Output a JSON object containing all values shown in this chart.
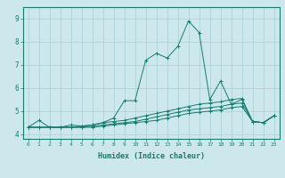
{
  "xlabel": "Humidex (Indice chaleur)",
  "ylabel": "",
  "bg_color": "#cce8ec",
  "grid_color": "#aacdd4",
  "line_color": "#1a7a6e",
  "xlim": [
    -0.5,
    23.5
  ],
  "ylim": [
    3.8,
    9.5
  ],
  "yticks": [
    4,
    5,
    6,
    7,
    8,
    9
  ],
  "xticks": [
    0,
    1,
    2,
    3,
    4,
    5,
    6,
    7,
    8,
    9,
    10,
    11,
    12,
    13,
    14,
    15,
    16,
    17,
    18,
    19,
    20,
    21,
    22,
    23
  ],
  "series": [
    {
      "x": [
        0,
        1,
        2,
        3,
        4,
        5,
        6,
        7,
        8,
        9,
        10,
        11,
        12,
        13,
        14,
        15,
        16,
        17,
        18,
        19,
        20,
        21,
        22,
        23
      ],
      "y": [
        4.3,
        4.6,
        4.3,
        4.3,
        4.4,
        4.35,
        4.4,
        4.5,
        4.7,
        5.45,
        5.45,
        7.2,
        7.5,
        7.3,
        7.8,
        8.9,
        8.4,
        5.5,
        6.3,
        5.3,
        5.5,
        4.55,
        4.5,
        4.8
      ]
    },
    {
      "x": [
        0,
        1,
        2,
        3,
        4,
        5,
        6,
        7,
        8,
        9,
        10,
        11,
        12,
        13,
        14,
        15,
        16,
        17,
        18,
        19,
        20,
        21,
        22,
        23
      ],
      "y": [
        4.3,
        4.3,
        4.3,
        4.3,
        4.3,
        4.35,
        4.4,
        4.5,
        4.55,
        4.6,
        4.7,
        4.8,
        4.9,
        5.0,
        5.1,
        5.2,
        5.3,
        5.35,
        5.4,
        5.5,
        5.55,
        4.55,
        4.5,
        4.8
      ]
    },
    {
      "x": [
        0,
        1,
        2,
        3,
        4,
        5,
        6,
        7,
        8,
        9,
        10,
        11,
        12,
        13,
        14,
        15,
        16,
        17,
        18,
        19,
        20,
        21,
        22,
        23
      ],
      "y": [
        4.3,
        4.3,
        4.3,
        4.3,
        4.3,
        4.3,
        4.35,
        4.4,
        4.45,
        4.5,
        4.55,
        4.65,
        4.75,
        4.85,
        4.95,
        5.05,
        5.1,
        5.15,
        5.2,
        5.3,
        5.35,
        4.55,
        4.5,
        4.8
      ]
    },
    {
      "x": [
        0,
        1,
        2,
        3,
        4,
        5,
        6,
        7,
        8,
        9,
        10,
        11,
        12,
        13,
        14,
        15,
        16,
        17,
        18,
        19,
        20,
        21,
        22,
        23
      ],
      "y": [
        4.3,
        4.3,
        4.3,
        4.3,
        4.3,
        4.3,
        4.3,
        4.35,
        4.4,
        4.45,
        4.5,
        4.55,
        4.6,
        4.7,
        4.8,
        4.9,
        4.95,
        5.0,
        5.05,
        5.15,
        5.2,
        4.55,
        4.5,
        4.8
      ]
    }
  ]
}
